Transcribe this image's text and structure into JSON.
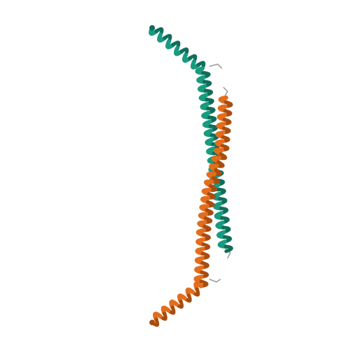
{
  "image": {
    "subject": "protein-ribbon-structure",
    "background_color": "#ffffff"
  },
  "chains": [
    {
      "id": "teal",
      "color": "#1a9a7f",
      "shade": "#0f6e5a"
    },
    {
      "id": "orange",
      "color": "#e36d1c",
      "shade": "#a94c0f"
    }
  ],
  "linker_color": "#9a9a9a"
}
